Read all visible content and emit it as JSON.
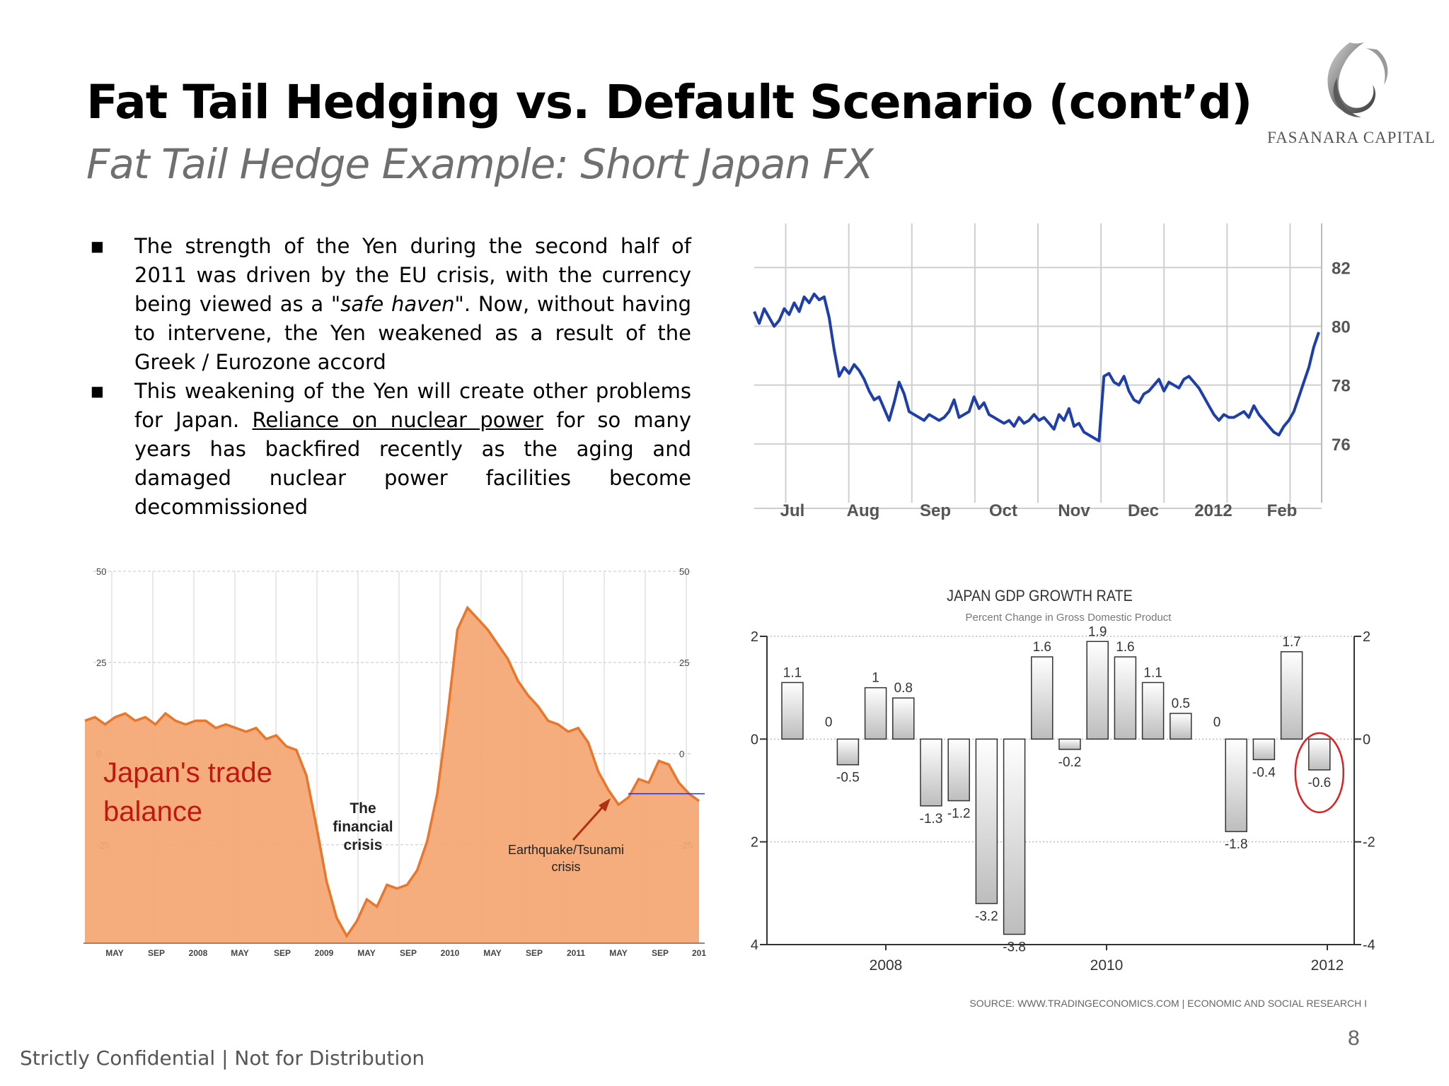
{
  "slide": {
    "title": "Fat Tail Hedging vs. Default Scenario (cont’d)",
    "subtitle": "Fat Tail Hedge Example: Short Japan FX",
    "logo_text": "FASANARA CAPITAL",
    "footer_left": "Strictly Confidential",
    "footer_sep": "|",
    "footer_right": "Not for Distribution",
    "page_number": "8",
    "bullets": [
      {
        "t1": "The strength of the Yen during the second half of 2011 was driven by the EU crisis, with the currency being viewed as a \"",
        "italic": "safe haven",
        "t2": "\". Now, without having to intervene, the Yen weakened as a result of the Greek / Eurozone accord"
      },
      {
        "t1": "This weakening of the Yen will create other problems for Japan. ",
        "underline": "Reliance on nuclear power",
        "t2": " for so many years has backfired recently as the aging and damaged nuclear power facilities become decommissioned"
      }
    ],
    "colors": {
      "title": "#000000",
      "subtitle": "#6f6f6f",
      "fx_line": "#1f3fa8",
      "trade_fill": "#f5a673",
      "trade_line": "#e8772e",
      "trade_label": "#c0170f",
      "circle": "#e02020"
    }
  },
  "chart_data": [
    {
      "type": "line",
      "id": "usdjpy",
      "x_labels": [
        "Jul",
        "Aug",
        "Sep",
        "Oct",
        "Nov",
        "Dec",
        "2012",
        "Feb"
      ],
      "y_ticks": [
        "82",
        "80",
        "78",
        "76"
      ],
      "ylim": [
        74.0,
        83.5
      ],
      "grid": true,
      "values": [
        80.5,
        80.1,
        80.6,
        80.3,
        80.0,
        80.2,
        80.6,
        80.4,
        80.8,
        80.5,
        81.0,
        80.8,
        81.1,
        80.9,
        81.0,
        80.3,
        79.2,
        78.3,
        78.6,
        78.4,
        78.7,
        78.5,
        78.2,
        77.8,
        77.5,
        77.6,
        77.2,
        76.8,
        77.4,
        78.1,
        77.7,
        77.1,
        77.0,
        76.9,
        76.8,
        77.0,
        76.9,
        76.8,
        76.9,
        77.1,
        77.5,
        76.9,
        77.0,
        77.1,
        77.6,
        77.2,
        77.4,
        77.0,
        76.9,
        76.8,
        76.7,
        76.8,
        76.6,
        76.9,
        76.7,
        76.8,
        77.0,
        76.8,
        76.9,
        76.7,
        76.5,
        77.0,
        76.8,
        77.2,
        76.6,
        76.7,
        76.4,
        76.3,
        76.2,
        76.1,
        78.3,
        78.4,
        78.1,
        78.0,
        78.3,
        77.8,
        77.5,
        77.4,
        77.7,
        77.8,
        78.0,
        78.2,
        77.8,
        78.1,
        78.0,
        77.9,
        78.2,
        78.3,
        78.1,
        77.9,
        77.6,
        77.3,
        77.0,
        76.8,
        77.0,
        76.9,
        76.9,
        77.0,
        77.1,
        76.9,
        77.3,
        77.0,
        76.8,
        76.6,
        76.4,
        76.3,
        76.6,
        76.8,
        77.1,
        77.6,
        78.1,
        78.6,
        79.3,
        79.8
      ]
    },
    {
      "type": "area",
      "id": "trade-balance",
      "series_label": "Japan's trade balance",
      "x_labels": [
        "MAY",
        "SEP",
        "2008",
        "MAY",
        "SEP",
        "2009",
        "MAY",
        "SEP",
        "2010",
        "MAY",
        "SEP",
        "2011",
        "MAY",
        "SEP",
        "201"
      ],
      "y_ticks": [
        "50",
        "25",
        "0",
        "-25"
      ],
      "ylim": [
        -52,
        50
      ],
      "annotations": [
        "The financial crisis",
        "Earthquake/Tsunami crisis"
      ],
      "values": [
        9,
        10,
        8,
        10,
        11,
        9,
        10,
        8,
        11,
        9,
        8,
        9,
        9,
        7,
        8,
        7,
        6,
        7,
        4,
        5,
        2,
        1,
        -6,
        -20,
        -35,
        -45,
        -50,
        -46,
        -40,
        -42,
        -36,
        -37,
        -36,
        -32,
        -24,
        -11,
        10,
        34,
        40,
        37,
        34,
        30,
        26,
        20,
        16,
        13,
        9,
        8,
        6,
        7,
        3,
        -5,
        -10,
        -14,
        -12,
        -7,
        -8,
        -2,
        -3,
        -8,
        -11,
        -13
      ]
    },
    {
      "type": "bar",
      "id": "gdp-growth",
      "title": "JAPAN GDP GROWTH RATE",
      "subtitle": "Percent Change in Gross Domestic Product",
      "x_labels": [
        "2008",
        "2010",
        "2012"
      ],
      "y_ticks": [
        "2",
        "0",
        "-2",
        "-4"
      ],
      "ylim": [
        -4,
        2
      ],
      "values": [
        1.1,
        0,
        -0.5,
        1,
        0.8,
        -1.3,
        -1.2,
        -3.2,
        -3.8,
        1.6,
        -0.2,
        1.9,
        1.6,
        1.1,
        0.5,
        0,
        -1.8,
        -0.4,
        1.7,
        -0.6
      ],
      "labels": [
        "1.1",
        "0",
        "-0.5",
        "1",
        "0.8",
        "-1.3",
        "-1.2",
        "-3.2",
        "-3.8",
        "1.6",
        "-0.2",
        "1.9",
        "1.6",
        "1.1",
        "0.5",
        "0",
        "-1.8",
        "-0.4",
        "1.7",
        "-0.6"
      ],
      "source": "SOURCE: WWW.TRADINGECONOMICS.COM | ECONOMIC AND SOCIAL RESEARCH I"
    }
  ]
}
